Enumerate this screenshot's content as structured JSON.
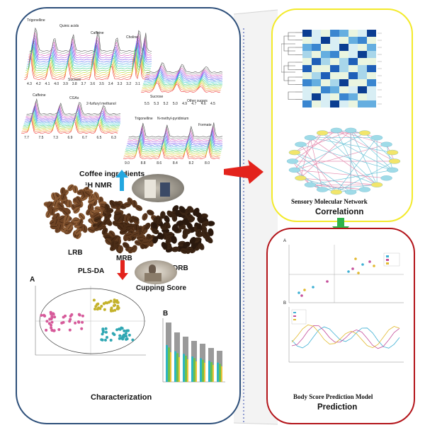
{
  "left": {
    "nmr_labels": {
      "trigonelline": "Trigonelline",
      "quinic": "Quinic acids",
      "caffeine_top": "Caffeine",
      "choline": "Choline",
      "sucrose": "Sucrose",
      "sucrose2": "Sucrose",
      "other_sugars": "Other sugars",
      "caffeine_mid": "Caffeine",
      "cgas": "CGAs",
      "furfuryl": "2-furfuryl methanol",
      "trigonelline2": "Trigonelline",
      "n_methyl": "N-methyl-pyridinium",
      "formate": "Formate"
    },
    "axis_ticks": {
      "top": [
        "4.3",
        "4.2",
        "4.1",
        "4.0",
        "3.9",
        "3.8",
        "3.7",
        "3.6",
        "3.5",
        "3.4",
        "3.3",
        "3.2",
        "3.1"
      ],
      "mid_right": [
        "5.5",
        "5.3",
        "5.2",
        "5.0",
        "4.9",
        "4.7",
        "4.6",
        "4.5"
      ],
      "mid_left": [
        "7.7",
        "7.5",
        "7.3",
        "6.9",
        "6.7",
        "6.5",
        "6.3"
      ],
      "bot_right": [
        "9.0",
        "8.8",
        "8.6",
        "8.4",
        "8.2",
        "8.0"
      ]
    },
    "coffee_ingredients": "Coffee ingredients",
    "h_nmr": "¹H NMR",
    "lrb": "LRB",
    "mrb": "MRB",
    "drb": "DRB",
    "plsda": "PLS-DA",
    "cupping": "Cupping Score",
    "panel_a": "A",
    "panel_b": "B",
    "characterization": "Characterization"
  },
  "yellow": {
    "title1": "Sensory Molecular Network",
    "title2": "Correlationn"
  },
  "red": {
    "panel_a": "A",
    "panel_b": "B",
    "title1": "Body Score Prediction Model",
    "title2": "Prediction"
  },
  "colors": {
    "left_border": "#2d4f7a",
    "yellow_border": "#f3ea2a",
    "red_border": "#b3141a",
    "arrow_red": "#e3231c",
    "arrow_blue": "#22a7e0",
    "arrow_green": "#2eb34a"
  }
}
